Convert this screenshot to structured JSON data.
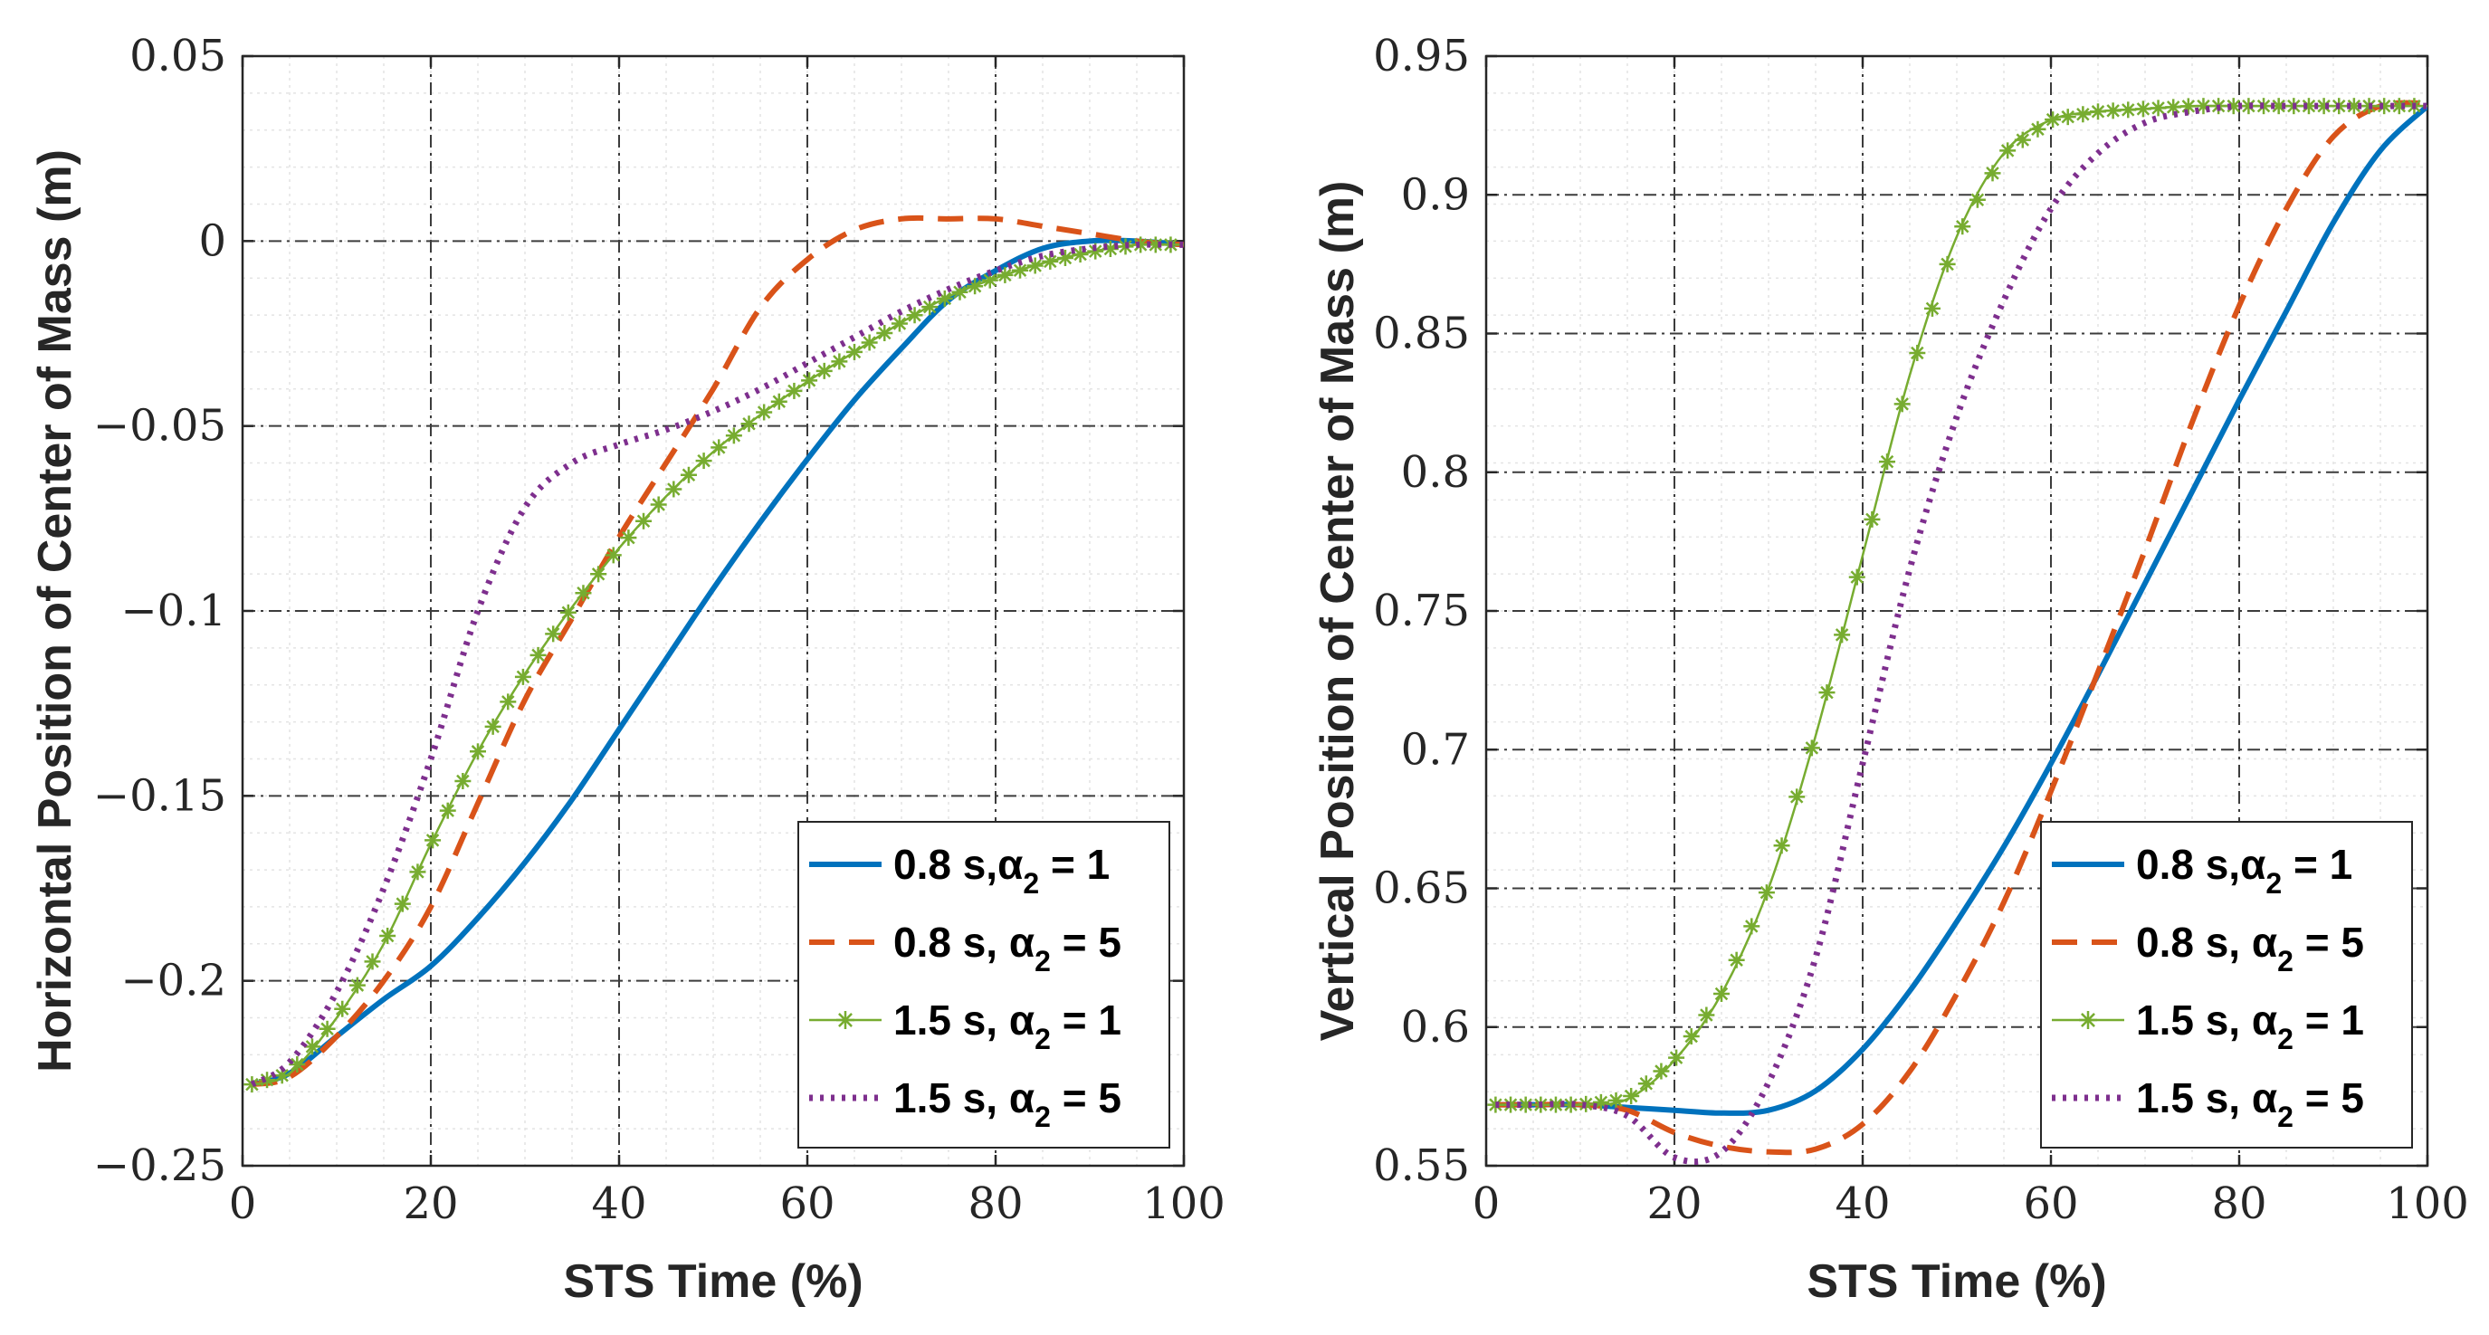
{
  "chart_data": [
    {
      "type": "line",
      "title": "",
      "xlabel": "STS Time (%)",
      "ylabel": "Horizontal Position of Center of Mass (m)",
      "xlim": [
        0,
        100
      ],
      "ylim": [
        -0.25,
        0.05
      ],
      "xticks": [
        "0",
        "20",
        "40",
        "60",
        "80",
        "100"
      ],
      "yticks": [
        "0.05",
        "0",
        "−0.05",
        "−0.1",
        "−0.15",
        "−0.2",
        "−0.25"
      ],
      "ytick_values": [
        0.05,
        0,
        -0.05,
        -0.1,
        -0.15,
        -0.2,
        -0.25
      ],
      "grid": true,
      "legend_position": "bottom-right",
      "x": [
        1,
        5,
        10,
        15,
        20,
        25,
        30,
        35,
        40,
        45,
        50,
        55,
        60,
        65,
        70,
        75,
        80,
        85,
        90,
        95,
        100
      ],
      "series": [
        {
          "name": "0.8 s,α",
          "legend_sub": "2",
          "legend_suffix": " = 1",
          "color": "#0072BD",
          "style": "solid",
          "values": [
            -0.228,
            -0.225,
            -0.215,
            -0.205,
            -0.196,
            -0.183,
            -0.168,
            -0.151,
            -0.132,
            -0.113,
            -0.094,
            -0.076,
            -0.059,
            -0.043,
            -0.029,
            -0.016,
            -0.008,
            -0.002,
            0.0,
            0.0,
            -0.001
          ]
        },
        {
          "name": "0.8 s, α",
          "legend_sub": "2",
          "legend_suffix": " = 5",
          "color": "#D95319",
          "style": "dashed",
          "values": [
            -0.228,
            -0.226,
            -0.215,
            -0.2,
            -0.18,
            -0.152,
            -0.124,
            -0.102,
            -0.08,
            -0.06,
            -0.04,
            -0.018,
            -0.005,
            0.003,
            0.006,
            0.006,
            0.006,
            0.004,
            0.002,
            0.0,
            -0.001
          ]
        },
        {
          "name": "1.5 s, α",
          "legend_sub": "2",
          "legend_suffix": " = 1",
          "color": "#77AC30",
          "style": "solid-star",
          "values": [
            -0.228,
            -0.225,
            -0.21,
            -0.19,
            -0.163,
            -0.138,
            -0.117,
            -0.099,
            -0.083,
            -0.069,
            -0.057,
            -0.047,
            -0.038,
            -0.03,
            -0.022,
            -0.015,
            -0.01,
            -0.006,
            -0.003,
            -0.001,
            -0.001
          ]
        },
        {
          "name": "1.5 s, α",
          "legend_sub": "2",
          "legend_suffix": " = 5",
          "color": "#7E2F8E",
          "style": "dotted",
          "values": [
            -0.228,
            -0.222,
            -0.203,
            -0.175,
            -0.14,
            -0.1,
            -0.072,
            -0.06,
            -0.055,
            -0.051,
            -0.046,
            -0.04,
            -0.033,
            -0.026,
            -0.019,
            -0.013,
            -0.008,
            -0.004,
            -0.002,
            -0.001,
            -0.001
          ]
        }
      ]
    },
    {
      "type": "line",
      "title": "",
      "xlabel": "STS Time (%)",
      "ylabel": "Vertical Position of Center of Mass (m)",
      "xlim": [
        0,
        100
      ],
      "ylim": [
        0.55,
        0.95
      ],
      "xticks": [
        "0",
        "20",
        "40",
        "60",
        "80",
        "100"
      ],
      "yticks": [
        "0.95",
        "0.9",
        "0.85",
        "0.8",
        "0.75",
        "0.7",
        "0.65",
        "0.6",
        "0.55"
      ],
      "ytick_values": [
        0.95,
        0.9,
        0.85,
        0.8,
        0.75,
        0.7,
        0.65,
        0.6,
        0.55
      ],
      "grid": true,
      "legend_position": "bottom-right",
      "x": [
        1,
        5,
        10,
        15,
        20,
        25,
        30,
        35,
        40,
        45,
        50,
        55,
        60,
        65,
        70,
        75,
        80,
        85,
        90,
        95,
        100
      ],
      "series": [
        {
          "name": "0.8 s,α",
          "legend_sub": "2",
          "legend_suffix": " = 1",
          "color": "#0072BD",
          "style": "solid",
          "values": [
            0.572,
            0.572,
            0.572,
            0.571,
            0.57,
            0.569,
            0.57,
            0.577,
            0.592,
            0.613,
            0.638,
            0.665,
            0.695,
            0.727,
            0.76,
            0.793,
            0.826,
            0.858,
            0.89,
            0.916,
            0.932
          ]
        },
        {
          "name": "0.8 s, α",
          "legend_sub": "2",
          "legend_suffix": " = 5",
          "color": "#D95319",
          "style": "dashed",
          "values": [
            0.572,
            0.572,
            0.572,
            0.57,
            0.562,
            0.557,
            0.555,
            0.556,
            0.565,
            0.584,
            0.612,
            0.645,
            0.685,
            0.728,
            0.772,
            0.818,
            0.86,
            0.895,
            0.921,
            0.932,
            0.933
          ]
        },
        {
          "name": "1.5 s, α",
          "legend_sub": "2",
          "legend_suffix": " = 1",
          "color": "#77AC30",
          "style": "solid-star",
          "values": [
            0.572,
            0.572,
            0.572,
            0.574,
            0.588,
            0.612,
            0.65,
            0.705,
            0.77,
            0.835,
            0.885,
            0.915,
            0.927,
            0.93,
            0.931,
            0.932,
            0.932,
            0.932,
            0.932,
            0.932,
            0.932
          ]
        },
        {
          "name": "1.5 s, α",
          "legend_sub": "2",
          "legend_suffix": " = 5",
          "color": "#7E2F8E",
          "style": "dotted",
          "values": [
            0.572,
            0.572,
            0.572,
            0.568,
            0.553,
            0.555,
            0.58,
            0.625,
            0.695,
            0.765,
            0.82,
            0.862,
            0.895,
            0.915,
            0.926,
            0.93,
            0.932,
            0.932,
            0.932,
            0.932,
            0.932
          ]
        }
      ]
    }
  ]
}
